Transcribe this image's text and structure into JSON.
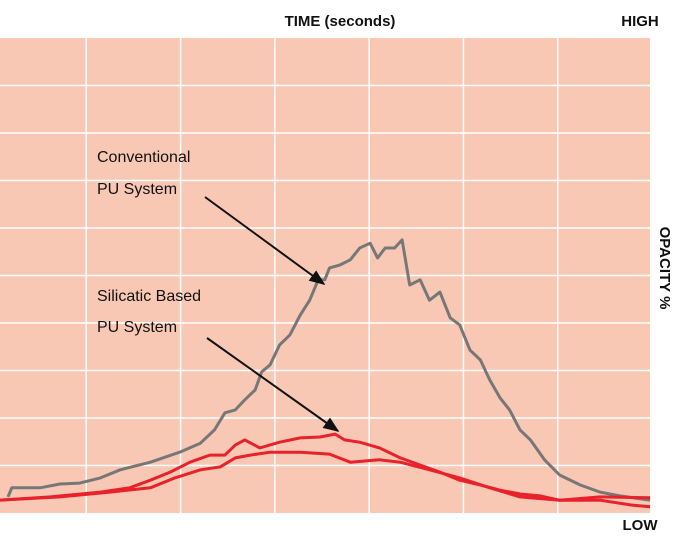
{
  "chart_data": {
    "type": "line",
    "xlabel": "TIME (seconds)",
    "ylabel": "OPACITY %",
    "high_label": "HIGH",
    "low_label": "LOW",
    "annotations": [
      {
        "lines": [
          "Conventional",
          "PU System"
        ]
      },
      {
        "lines": [
          "Silicatic Based",
          "PU System"
        ]
      }
    ],
    "xlim": [
      0,
      7
    ],
    "ylim": [
      0,
      100
    ],
    "xticks": [
      1,
      2,
      3,
      4,
      5,
      6
    ],
    "yticks": [
      10,
      20,
      30,
      40,
      50,
      60,
      70,
      80,
      90
    ],
    "grid": true,
    "background": "#f8c8b4",
    "series": [
      {
        "color": "#777777",
        "x": [
          0.17,
          0.21,
          0.51,
          0.72,
          0.93,
          1.15,
          1.36,
          1.68,
          1.99,
          2.21,
          2.36,
          2.47,
          2.58,
          2.68,
          2.79,
          2.86,
          2.95,
          3.05,
          3.16,
          3.27,
          3.37,
          3.46,
          3.53,
          3.58,
          3.69,
          3.8,
          3.9,
          4.01,
          4.09,
          4.17,
          4.27,
          4.35,
          4.43,
          4.54,
          4.64,
          4.75,
          4.86,
          4.96,
          5.07,
          5.18,
          5.28,
          5.39,
          5.49,
          5.6,
          5.71,
          5.86,
          6.02,
          6.24,
          6.45,
          6.66,
          6.98
        ],
        "values": [
          3.4,
          5.3,
          5.3,
          6.1,
          6.3,
          7.4,
          9.1,
          10.7,
          12.8,
          14.7,
          17.5,
          21.1,
          21.7,
          23.8,
          25.9,
          29.7,
          31.2,
          35.4,
          37.5,
          41.7,
          44.8,
          49.1,
          49.1,
          51.6,
          52.2,
          53.3,
          55.8,
          56.8,
          53.7,
          55.8,
          55.8,
          57.5,
          48.0,
          49.1,
          44.8,
          46.5,
          41.1,
          39.6,
          34.3,
          32.2,
          28.0,
          24.2,
          21.7,
          17.5,
          15.4,
          11.2,
          8.0,
          5.9,
          4.4,
          3.6,
          2.7
        ]
      },
      {
        "color": "#e8212a",
        "x": [
          0.08,
          0.62,
          1.15,
          1.46,
          1.68,
          1.89,
          2.1,
          2.31,
          2.47,
          2.58,
          2.68,
          2.84,
          3.05,
          3.27,
          3.48,
          3.64,
          3.74,
          3.9,
          4.11,
          4.33,
          4.54,
          4.75,
          4.96,
          5.18,
          5.39,
          5.6,
          5.81,
          6.02,
          6.45,
          6.77,
          6.98
        ],
        "values": [
          2.7,
          3.4,
          4.4,
          5.3,
          6.9,
          8.6,
          10.7,
          12.2,
          12.2,
          14.3,
          15.4,
          13.7,
          14.9,
          15.8,
          16.0,
          16.6,
          15.4,
          14.9,
          13.7,
          11.6,
          10.1,
          8.6,
          6.9,
          5.9,
          4.8,
          4.0,
          3.6,
          2.7,
          2.7,
          1.7,
          1.3
        ]
      },
      {
        "color": "#e8212a",
        "x": [
          0.08,
          0.72,
          1.25,
          1.68,
          1.94,
          2.21,
          2.42,
          2.58,
          2.74,
          2.95,
          3.27,
          3.58,
          3.8,
          4.11,
          4.33,
          4.64,
          4.96,
          5.28,
          5.6,
          6.02,
          6.45,
          6.98
        ],
        "values": [
          2.7,
          3.4,
          4.4,
          5.3,
          7.4,
          9.1,
          9.7,
          11.6,
          12.2,
          12.8,
          12.8,
          12.4,
          10.7,
          11.2,
          10.7,
          9.1,
          7.4,
          5.3,
          3.4,
          2.7,
          3.4,
          3.2
        ]
      }
    ]
  }
}
